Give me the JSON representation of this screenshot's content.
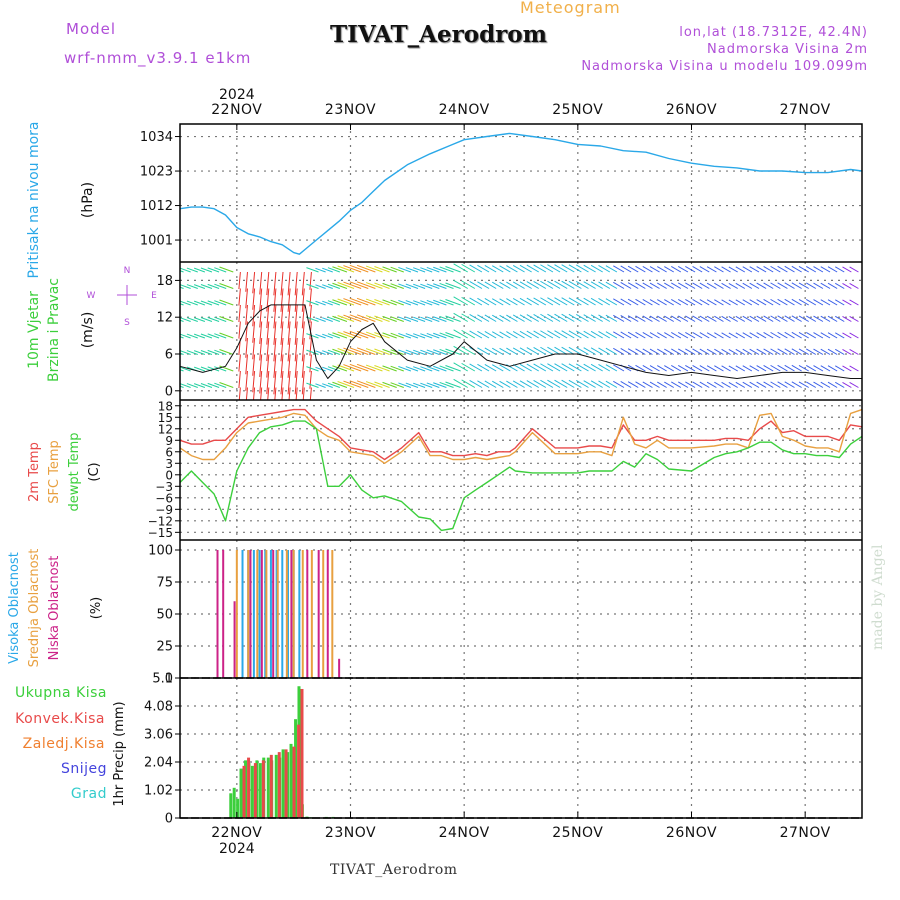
{
  "header": {
    "model_label": "Model",
    "model_value": "wrf-nmm_v3.9.1 e1km",
    "subtitle": "Meteogram",
    "station": "TIVAT_Aerodrom",
    "lonlat": "lon,lat (18.7312E, 42.4N)",
    "altitude": "Nadmorska Visina 2m",
    "model_altitude": "Nadmorska Visina u modelu 109.099m",
    "footer": "TIVAT_Aerodrom",
    "credit": "made by Angel"
  },
  "colors": {
    "pressure": "#2aa8e8",
    "wind_speed": "#111111",
    "temp_2m": "#e84a4a",
    "temp_sfc": "#e8a040",
    "dewpoint": "#3ccf3c",
    "cloud_high": "#2aa8e8",
    "cloud_mid": "#e8a040",
    "cloud_low": "#cc2288",
    "precip_total": "#3ccf3c",
    "precip_conv": "#e84a4a",
    "precip_frozen": "#f08030",
    "precip_snow": "#4444dd",
    "precip_hail": "#33cccc",
    "wind_compass": "#b04fd8"
  },
  "chart_data": [
    {
      "type": "line",
      "panel": "pressure",
      "ylabel": [
        "Pritisak na nivou mora",
        "(hPa)"
      ],
      "x_range": [
        21.5,
        27.5
      ],
      "ylim": [
        994,
        1038
      ],
      "yticks": [
        1001,
        1012,
        1023,
        1034
      ],
      "xtick_labels": [
        "22NOV",
        "23NOV",
        "24NOV",
        "25NOV",
        "26NOV",
        "27NOV"
      ],
      "xtick_year": "2024",
      "x": [
        21.5,
        21.6,
        21.7,
        21.8,
        21.9,
        22.0,
        22.1,
        22.2,
        22.3,
        22.4,
        22.5,
        22.55,
        22.6,
        22.7,
        22.8,
        22.9,
        23.0,
        23.1,
        23.2,
        23.3,
        23.5,
        23.7,
        23.9,
        24.0,
        24.2,
        24.4,
        24.6,
        24.8,
        25.0,
        25.2,
        25.4,
        25.6,
        25.8,
        26.0,
        26.2,
        26.4,
        26.6,
        26.8,
        27.0,
        27.2,
        27.4,
        27.5
      ],
      "values": [
        1011,
        1011.5,
        1011.5,
        1011,
        1009,
        1005,
        1003,
        1002,
        1000.5,
        999.5,
        997,
        996.5,
        998,
        1001,
        1004,
        1007,
        1010.5,
        1013,
        1016.5,
        1020,
        1025,
        1028.5,
        1031.5,
        1033,
        1034,
        1035,
        1034,
        1033,
        1031.5,
        1031,
        1029.5,
        1029,
        1027,
        1025.5,
        1024.5,
        1024,
        1023,
        1023,
        1022.5,
        1022.5,
        1023.5,
        1023
      ]
    },
    {
      "type": "line",
      "panel": "wind",
      "ylabel": [
        "10m Vjetar",
        "Brzina i Pravac",
        "(m/s)"
      ],
      "compass": {
        "n": "N",
        "s": "S",
        "w": "W",
        "e": "E"
      },
      "x_range": [
        21.5,
        27.5
      ],
      "ylim": [
        -1.5,
        21
      ],
      "yticks": [
        0,
        6,
        12,
        18
      ],
      "x": [
        21.5,
        21.7,
        21.9,
        22.0,
        22.1,
        22.2,
        22.3,
        22.4,
        22.5,
        22.6,
        22.7,
        22.8,
        22.9,
        23.0,
        23.1,
        23.2,
        23.3,
        23.5,
        23.7,
        23.9,
        24.0,
        24.2,
        24.4,
        24.6,
        24.8,
        25.0,
        25.2,
        25.4,
        25.6,
        25.8,
        26.0,
        26.2,
        26.4,
        26.6,
        26.8,
        27.0,
        27.2,
        27.4,
        27.5
      ],
      "values": [
        4,
        3,
        4,
        7,
        11,
        13,
        14,
        14,
        14,
        14,
        5,
        2,
        4,
        8,
        10,
        11,
        8,
        5,
        4,
        6,
        8,
        5,
        4,
        5,
        6,
        6,
        5,
        4,
        3,
        2.5,
        3,
        2.5,
        2,
        2.5,
        3,
        3,
        2.5,
        2,
        2
      ]
    },
    {
      "type": "line",
      "panel": "temperature",
      "ylabel": [
        "2m Temp",
        "SFC Temp",
        "dewpt Temp",
        "(C)"
      ],
      "x_range": [
        21.5,
        27.5
      ],
      "ylim": [
        -17,
        19.5
      ],
      "yticks": [
        -15,
        -12,
        -9,
        -6,
        -3,
        0,
        3,
        6,
        9,
        12,
        15,
        18
      ],
      "x": [
        21.5,
        21.6,
        21.7,
        21.8,
        21.9,
        22.0,
        22.1,
        22.2,
        22.3,
        22.4,
        22.5,
        22.6,
        22.7,
        22.8,
        22.9,
        23.0,
        23.1,
        23.2,
        23.3,
        23.45,
        23.6,
        23.7,
        23.8,
        23.9,
        24.0,
        24.1,
        24.2,
        24.3,
        24.4,
        24.45,
        24.6,
        24.8,
        25.0,
        25.1,
        25.2,
        25.3,
        25.4,
        25.5,
        25.6,
        25.7,
        25.8,
        26.0,
        26.2,
        26.3,
        26.4,
        26.5,
        26.6,
        26.7,
        26.8,
        26.9,
        27.0,
        27.1,
        27.2,
        27.3,
        27.4,
        27.5
      ],
      "series": [
        {
          "name": "2m Temp",
          "values": [
            9,
            8,
            8,
            9,
            9,
            12,
            15,
            15.5,
            16,
            16.5,
            17,
            17,
            14,
            12,
            10,
            7,
            6.5,
            6,
            4,
            7,
            11,
            6,
            6,
            5,
            5,
            5.5,
            5,
            6,
            6,
            7,
            12,
            7,
            7,
            7.5,
            7.5,
            7,
            13,
            9,
            9,
            10,
            9,
            9,
            9,
            9.5,
            9.5,
            9,
            12,
            14,
            11,
            11.5,
            10,
            10,
            10,
            9,
            13,
            12.5
          ]
        },
        {
          "name": "SFC Temp",
          "values": [
            7,
            5,
            4,
            4,
            7,
            11,
            13.5,
            14,
            14.5,
            15,
            16,
            15.5,
            12,
            10,
            9,
            6,
            5.5,
            5,
            3,
            6,
            10,
            5,
            5,
            4,
            4,
            4.5,
            4,
            4.5,
            5,
            6,
            11,
            5.5,
            5.5,
            6,
            6,
            5,
            15,
            8,
            7,
            9,
            7,
            7,
            7.5,
            8,
            8,
            7,
            15.5,
            16,
            10,
            9,
            7.5,
            7,
            7,
            6,
            16,
            17
          ]
        },
        {
          "name": "dewpt Temp",
          "values": [
            -2,
            1,
            -2,
            -5,
            -12,
            1,
            7,
            11,
            12.5,
            13,
            14,
            14,
            12,
            -3,
            -3,
            0,
            -4,
            -6,
            -5.5,
            -7,
            -11,
            -11.5,
            -14.5,
            -14,
            -6,
            -4,
            -2,
            0,
            2,
            1,
            0.5,
            0.5,
            0.5,
            1,
            1,
            1,
            3.5,
            2,
            5.5,
            4,
            1.5,
            1,
            4.5,
            5.5,
            6,
            7,
            8.5,
            8.5,
            6.5,
            5.5,
            5.5,
            5,
            5,
            4.5,
            8,
            10
          ]
        }
      ]
    },
    {
      "type": "bar",
      "panel": "clouds",
      "ylabel": [
        "Visoka Oblacnost",
        "Srednja Oblacnost",
        "Niska Oblacnost",
        "(%)"
      ],
      "x_range": [
        21.5,
        27.5
      ],
      "ylim": [
        0,
        100
      ],
      "yticks": [
        0,
        25,
        50,
        75,
        100
      ],
      "series": [
        {
          "name": "Visoka Oblacnost",
          "x": [
            22.05,
            22.1,
            22.15,
            22.2,
            22.25,
            22.3,
            22.35,
            22.4,
            22.45,
            22.5,
            22.55
          ],
          "values": [
            100,
            100,
            100,
            100,
            100,
            100,
            100,
            100,
            100,
            100,
            100
          ]
        },
        {
          "name": "Srednja Oblacnost",
          "x": [
            22.0,
            22.1,
            22.18,
            22.26,
            22.36,
            22.44,
            22.5,
            22.58,
            22.66,
            22.76,
            22.84
          ],
          "values": [
            100,
            100,
            100,
            100,
            100,
            100,
            100,
            100,
            100,
            100,
            100
          ]
        },
        {
          "name": "Niska Oblacnost",
          "x": [
            21.83,
            21.88,
            21.98,
            22.12,
            22.22,
            22.32,
            22.48,
            22.62,
            22.72,
            22.8,
            22.9
          ],
          "values": [
            100,
            100,
            60,
            100,
            100,
            100,
            100,
            100,
            100,
            100,
            15
          ]
        }
      ]
    },
    {
      "type": "bar",
      "panel": "precipitation",
      "ylabel": [
        "1hr Precip (mm)"
      ],
      "legend": [
        "Ukupna Kisa",
        "Konvek.Kisa",
        "Zaledj.Kisa",
        "Snijeg",
        "Grad"
      ],
      "x_range": [
        21.5,
        27.5
      ],
      "ylim": [
        0,
        5.1
      ],
      "yticks": [
        0,
        1.02,
        2.04,
        3.06,
        4.08,
        5.1
      ],
      "x": [
        21.96,
        21.99,
        22.02,
        22.05,
        22.09,
        22.12,
        22.15,
        22.19,
        22.22,
        22.25,
        22.29,
        22.32,
        22.36,
        22.39,
        22.42,
        22.46,
        22.49,
        22.53,
        22.56,
        22.59,
        22.63,
        22.66,
        22.7,
        22.73,
        22.8,
        22.86
      ],
      "series": [
        {
          "name": "Ukupna Kisa",
          "values": [
            0.9,
            1.1,
            0.7,
            1.8,
            2.1,
            2.0,
            1.9,
            2.1,
            2.0,
            2.2,
            2.2,
            2.1,
            2.3,
            2.2,
            2.5,
            2.4,
            2.7,
            3.6,
            4.8,
            0.5,
            0.05,
            0.03,
            0.02,
            0.02,
            0.04,
            0.04
          ]
        },
        {
          "name": "Konvek.Kisa",
          "values": [
            0.0,
            0.0,
            0.0,
            1.9,
            2.2,
            0.0,
            2.0,
            0.0,
            2.1,
            0.0,
            2.3,
            0.0,
            2.4,
            0.0,
            2.5,
            0.0,
            2.6,
            3.4,
            4.7,
            0.0,
            0.0,
            0.0,
            0.0,
            0.0,
            0.0,
            0.0
          ]
        }
      ]
    }
  ]
}
